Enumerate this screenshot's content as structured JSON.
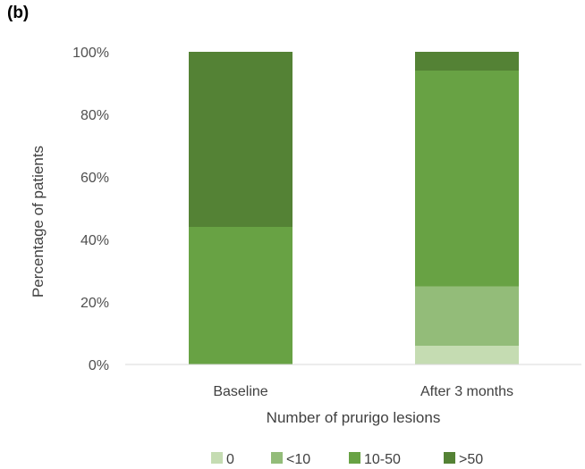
{
  "panel_label": "(b)",
  "chart_data": {
    "type": "bar",
    "stacked": true,
    "title": "",
    "xlabel": "Number of prurigo lesions",
    "ylabel": "Percentage of patients",
    "ylim": [
      0,
      100
    ],
    "yticks": [
      "0%",
      "20%",
      "40%",
      "60%",
      "80%",
      "100%"
    ],
    "categories": [
      "Baseline",
      "After 3 months"
    ],
    "series": [
      {
        "name": "0",
        "color": "#c5dcb2",
        "values": [
          0,
          6
        ]
      },
      {
        "name": "<10",
        "color": "#93bc79",
        "values": [
          0,
          19
        ]
      },
      {
        "name": "10-50",
        "color": "#68a244",
        "values": [
          44,
          69
        ]
      },
      {
        "name": ">50",
        "color": "#548235",
        "values": [
          56,
          6
        ]
      }
    ],
    "legend_position": "bottom",
    "grid": false
  }
}
